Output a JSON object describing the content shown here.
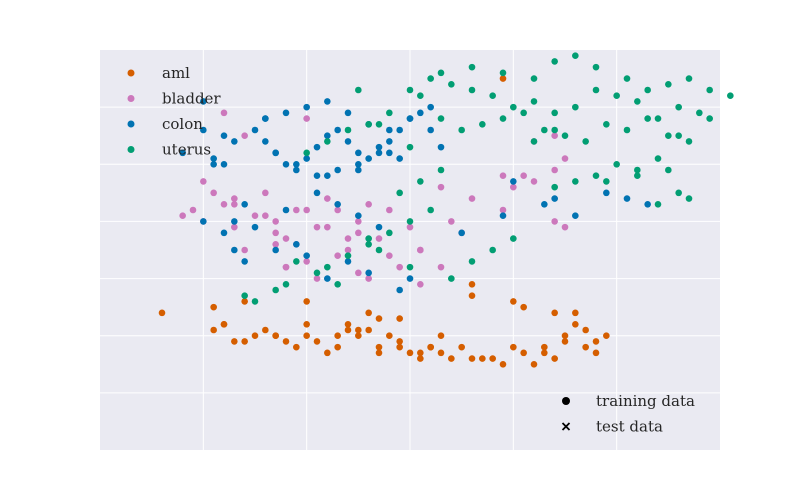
{
  "chart_data": {
    "type": "scatter",
    "title": "",
    "xlabel": "",
    "ylabel": "",
    "xlim": [
      -1.0,
      5.0
    ],
    "ylim": [
      -1.0,
      6.0
    ],
    "grid": true,
    "ticks_labeled": false,
    "legend_position": "top-left",
    "series": [
      {
        "name": "aml",
        "color": "#d55e00",
        "marker": "circle",
        "x": [
          2.9,
          0.1,
          1.0,
          0.3,
          0.2,
          -0.4,
          2.6,
          0.7,
          0.2,
          0.1,
          0.4,
          0.5,
          0.7,
          0.6,
          0.9,
          0.8,
          1.1,
          1.0,
          1.3,
          1.2,
          1.3,
          1.4,
          1.5,
          1.7,
          1.4,
          1.6,
          1.5,
          1.8,
          1.7,
          1.9,
          2.0,
          2.1,
          1.9,
          2.2,
          2.4,
          2.5,
          2.3,
          2.6,
          2.7,
          2.8,
          2.9,
          3.0,
          3.1,
          3.3,
          3.2,
          3.4,
          3.5,
          3.6,
          3.7,
          3.8,
          3.9,
          3.4,
          3.6,
          3.5,
          3.3,
          3.7,
          3.8,
          3.1,
          3.0,
          2.2,
          2.3,
          2.1,
          1.7,
          2.6,
          1.0,
          0.4,
          1.6,
          1.9
        ],
        "y": [
          5.5,
          1.5,
          1.6,
          0.9,
          1.2,
          1.4,
          1.9,
          1.0,
          1.2,
          1.1,
          0.9,
          1.0,
          1.0,
          1.1,
          0.8,
          0.9,
          0.9,
          1.0,
          0.8,
          0.7,
          1.0,
          1.2,
          1.1,
          0.7,
          1.1,
          1.1,
          1.0,
          1.0,
          0.8,
          0.8,
          0.7,
          0.6,
          0.9,
          0.8,
          0.6,
          0.8,
          0.7,
          0.6,
          0.6,
          0.6,
          0.5,
          0.8,
          0.7,
          0.7,
          0.5,
          0.6,
          0.9,
          1.2,
          0.8,
          0.9,
          1.0,
          1.4,
          1.4,
          1.0,
          0.8,
          1.1,
          0.7,
          1.5,
          1.6,
          0.8,
          1.0,
          0.7,
          1.3,
          1.7,
          1.2,
          1.6,
          1.4,
          1.3
        ]
      },
      {
        "name": "bladder",
        "color": "#cc78bc",
        "marker": "circle",
        "x": [
          0.0,
          1.2,
          1.5,
          0.3,
          -0.2,
          0.1,
          0.3,
          0.5,
          0.7,
          0.9,
          1.1,
          0.9,
          1.3,
          1.5,
          1.6,
          1.8,
          2.1,
          2.3,
          2.0,
          0.7,
          0.8,
          0.4,
          -0.1,
          0.2,
          0.6,
          1.0,
          1.2,
          1.4,
          1.7,
          1.9,
          2.1,
          2.5,
          2.4,
          2.6,
          2.9,
          3.0,
          3.2,
          3.4,
          3.5,
          3.4,
          3.2,
          1.0,
          0.2,
          0.4,
          0.6,
          0.8,
          1.1,
          1.5,
          1.8,
          2.3,
          2.9,
          3.1,
          3.4,
          3.5,
          1.6,
          1.3,
          2.1,
          1.0,
          0.7,
          0.3,
          0.0,
          0.8,
          1.4
        ],
        "y": [
          3.7,
          3.4,
          3.0,
          3.4,
          3.1,
          3.5,
          3.3,
          3.1,
          2.8,
          2.6,
          2.9,
          3.2,
          2.4,
          2.1,
          2.0,
          2.4,
          2.5,
          2.2,
          2.9,
          3.0,
          2.7,
          2.5,
          3.2,
          3.3,
          3.1,
          3.2,
          2.9,
          2.5,
          2.7,
          2.2,
          1.9,
          2.8,
          3.0,
          3.4,
          3.2,
          3.6,
          3.7,
          3.9,
          4.1,
          4.5,
          4.4,
          4.8,
          4.9,
          4.5,
          3.5,
          2.2,
          2.0,
          2.8,
          3.2,
          3.6,
          3.8,
          3.8,
          3.0,
          2.9,
          3.3,
          3.2,
          2.5,
          2.3,
          2.6,
          2.9,
          3.0,
          2.2,
          2.7
        ],
        "note": ""
      },
      {
        "name": "colon",
        "color": "#0173b2",
        "marker": "circle",
        "x": [
          0.0,
          -0.2,
          0.1,
          0.3,
          0.1,
          0.2,
          0.5,
          0.6,
          0.7,
          0.8,
          0.9,
          1.0,
          1.1,
          1.2,
          1.3,
          1.4,
          1.5,
          1.6,
          1.7,
          1.8,
          1.9,
          2.0,
          2.1,
          2.2,
          2.3,
          1.9,
          1.7,
          1.5,
          1.3,
          1.1,
          0.9,
          0.7,
          0.6,
          0.8,
          1.0,
          1.2,
          1.4,
          1.6,
          1.8,
          2.0,
          2.2,
          0.4,
          0.3,
          0.2,
          0.0,
          0.5,
          0.8,
          1.1,
          1.3,
          1.5,
          1.7,
          0.9,
          0.7,
          1.0,
          1.4,
          1.6,
          1.2,
          2.0,
          1.9,
          0.3,
          0.4,
          2.5,
          2.9,
          3.0,
          3.3,
          3.4,
          3.6,
          3.9,
          4.1,
          4.3,
          1.8,
          0.6,
          0.0,
          0.2,
          1.5,
          1.2
        ],
        "y": [
          5.1,
          4.2,
          4.0,
          4.4,
          4.1,
          4.5,
          4.6,
          4.4,
          4.2,
          4.0,
          3.9,
          4.1,
          4.3,
          4.5,
          4.6,
          4.4,
          4.2,
          4.1,
          4.3,
          4.4,
          4.6,
          4.8,
          4.9,
          4.6,
          4.3,
          4.1,
          4.2,
          4.0,
          3.9,
          3.8,
          4.0,
          4.2,
          4.8,
          4.9,
          5.0,
          5.1,
          4.9,
          4.7,
          4.6,
          4.8,
          5.0,
          3.3,
          3.0,
          2.8,
          3.0,
          2.9,
          3.2,
          3.5,
          3.3,
          3.1,
          2.9,
          2.6,
          2.5,
          2.4,
          2.3,
          2.1,
          2.0,
          2.0,
          1.8,
          2.5,
          2.3,
          2.8,
          3.1,
          3.7,
          3.3,
          3.4,
          3.1,
          3.5,
          3.4,
          3.3,
          4.2,
          4.8,
          4.6,
          4.0,
          3.9,
          3.8
        ]
      },
      {
        "name": "uterus",
        "color": "#029e73",
        "marker": "circle",
        "x": [
          2.0,
          2.3,
          2.6,
          2.9,
          3.2,
          3.4,
          3.6,
          3.8,
          4.1,
          4.3,
          4.5,
          4.7,
          4.9,
          5.1,
          4.8,
          4.6,
          4.4,
          4.2,
          4.0,
          3.8,
          3.6,
          3.4,
          3.2,
          3.0,
          2.8,
          2.6,
          2.4,
          2.2,
          2.1,
          2.3,
          2.5,
          2.7,
          2.9,
          3.1,
          3.3,
          3.5,
          3.7,
          3.9,
          4.1,
          4.3,
          4.5,
          4.7,
          4.9,
          4.6,
          4.4,
          4.2,
          4.0,
          3.8,
          3.6,
          3.4,
          3.9,
          4.2,
          4.5,
          4.4,
          4.6,
          4.7,
          1.8,
          1.6,
          1.4,
          1.2,
          1.0,
          2.2,
          2.0,
          1.8,
          1.6,
          1.4,
          1.2,
          1.9,
          2.1,
          2.3,
          2.0,
          1.7,
          1.5,
          0.9,
          1.1,
          1.3,
          0.8,
          0.7,
          0.4,
          0.5,
          1.6,
          1.7,
          2.0,
          2.4,
          2.6,
          2.8,
          3.0,
          3.2,
          3.4
        ],
        "y": [
          5.3,
          5.6,
          5.7,
          5.6,
          5.5,
          5.8,
          5.9,
          5.7,
          5.5,
          5.3,
          5.4,
          5.5,
          5.3,
          5.2,
          4.9,
          5.0,
          4.8,
          5.1,
          5.2,
          5.3,
          5.0,
          4.9,
          5.1,
          5.0,
          5.2,
          5.3,
          5.4,
          5.5,
          5.2,
          4.8,
          4.6,
          4.7,
          4.8,
          4.9,
          4.6,
          4.5,
          4.4,
          4.7,
          4.6,
          4.8,
          4.5,
          4.4,
          4.8,
          4.5,
          4.1,
          3.9,
          4.0,
          3.8,
          3.7,
          3.6,
          3.7,
          3.8,
          3.9,
          3.3,
          3.5,
          3.4,
          4.9,
          4.7,
          4.6,
          4.4,
          4.2,
          3.2,
          3.0,
          2.8,
          2.6,
          2.4,
          2.2,
          3.5,
          3.7,
          3.9,
          4.3,
          4.7,
          5.3,
          2.3,
          2.1,
          1.9,
          1.9,
          1.8,
          1.7,
          1.6,
          2.7,
          2.5,
          2.2,
          2.0,
          2.3,
          2.5,
          2.7,
          4.4,
          4.6
        ]
      }
    ],
    "marker_legend": [
      {
        "label": "training data",
        "marker": "circle"
      },
      {
        "label": "test data",
        "marker": "x"
      }
    ]
  }
}
